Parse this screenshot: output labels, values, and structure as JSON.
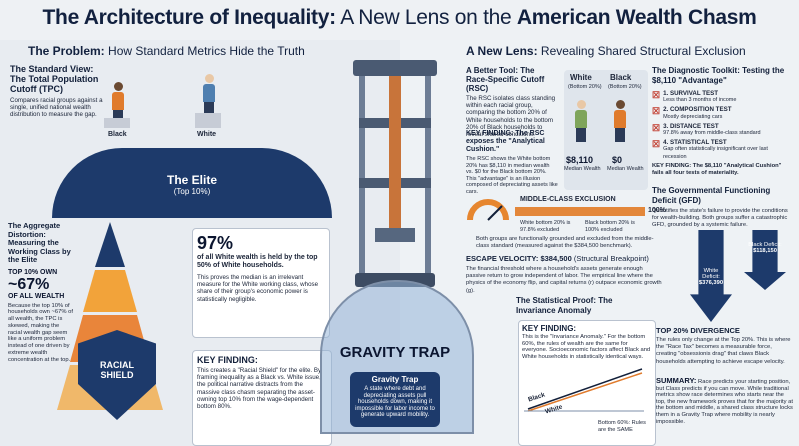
{
  "title": {
    "bold1": "The Architecture of Inequality:",
    "light": " A New Lens on the ",
    "bold2": "American Wealth Chasm"
  },
  "left": {
    "heading_bold": "The Problem:",
    "heading_rest": " How Standard Metrics Hide the Truth",
    "standard_view": {
      "title": "The Standard View: The Total Population Cutoff (TPC)",
      "desc": "Compares racial groups against a single, unified national wealth distribution to measure the gap.",
      "labels": [
        "Black",
        "White"
      ]
    },
    "elite": {
      "title": "The Elite",
      "sub": "(Top 10%)"
    },
    "aggregate": {
      "title": "The Aggregate Distortion: Measuring the Working Class by the Elite",
      "top_label": "TOP 10% OWN",
      "big": "~67%",
      "big_sub": "OF ALL WEALTH",
      "desc": "Because the top 10% of households own ~67% of all wealth, the TPC is skewed, making the racial wealth gap seem like a uniform problem instead of one driven by extreme wealth concentration at the top."
    },
    "stat97": {
      "big": "97%",
      "text": "of all White wealth is held by the top 50% of White households.",
      "desc": "This proves the median is an irrelevant measure for the White working class, whose share of their group's economic power is statistically negligible."
    },
    "shield": {
      "line1": "RACIAL",
      "line2": "SHIELD"
    },
    "key_finding": {
      "title": "KEY FINDING:",
      "text": "This creates a \"Racial Shield\" for the elite. By framing inequality as a Black vs. White issue, the political narrative distracts from the massive class chasm separating the asset-owning top 10% from the wage-dependent bottom 80%."
    }
  },
  "center": {
    "gravity_trap": "GRAVITY TRAP",
    "gt_title": "Gravity Trap",
    "gt_text": "A state where debt and depreciating assets pull households down, making it impossible for labor income to generate upward mobility."
  },
  "right": {
    "heading_bold": "A New Lens:",
    "heading_rest": " Revealing Shared Structural Exclusion",
    "rsc": {
      "title": "A Better Tool: The Race-Specific Cutoff (RSC)",
      "desc": "The RSC isolates class standing within each racial group, comparing the bottom 20% of White households to the bottom 20% of Black households to reveal shared conditions.",
      "white_label": "White",
      "white_sub": "(Bottom 20%)",
      "black_label": "Black",
      "black_sub": "(Bottom 20%)",
      "white_val": "$8,110",
      "black_val": "$0",
      "val_sub": "Median Wealth"
    },
    "key1": {
      "title": "KEY FINDING: The RSC exposes the \"Analytical Cushion.\"",
      "text": "The RSC shows the White bottom 20% has $8,110 in median wealth vs. $0 for the Black bottom 20%. This \"advantage\" is an illusion composed of depreciating assets like cars."
    },
    "mce": {
      "title": "MIDDLE-CLASS EXCLUSION",
      "pct": "100%",
      "white": "White bottom 20% is 97.8% excluded",
      "black": "Black bottom 20% is 100% excluded",
      "desc": "Both groups are functionally grounded and excluded from the middle-class standard (measured against the $384,500 benchmark)."
    },
    "escape": {
      "title": "ESCAPE VELOCITY: $384,500",
      "sub": " (Structural Breakpoint)",
      "text": "The financial threshold where a household's assets generate enough passive return to grow independent of labor. The empirical line where the physics of the economy flip, and capital returns (r) outpace economic growth (g)."
    },
    "toolkit": {
      "title": "The Diagnostic Toolkit: Testing the $8,110 \"Advantage\"",
      "tests": [
        {
          "name": "1. SURVIVAL TEST",
          "desc": "Less than 3 months of income"
        },
        {
          "name": "2. COMPOSITION TEST",
          "desc": "Mostly depreciating cars"
        },
        {
          "name": "3. DISTANCE TEST",
          "desc": "97.8% away from middle-class standard"
        },
        {
          "name": "4. STATISTICAL TEST",
          "desc": "Gap often statistically insignificant over last recession"
        }
      ],
      "finding": "KEY FINDING: The $8,110 \"Analytical Cushion\" fails all four tests of materiality."
    },
    "gfd": {
      "title": "The Governmental Functioning Deficit (GFD)",
      "text": "Quantifies the state's failure to provide the conditions for wealth-building. Both groups suffer a catastrophic GFD, grounded by a systemic failure.",
      "white": "White Deficit:",
      "white_val": "$376,390",
      "black": "Black Deficit:",
      "black_val": "$118,150"
    },
    "proof": {
      "title": "The Statistical Proof: The Invariance Anomaly",
      "key_title": "KEY FINDING:",
      "key_text": "This is the \"Invariance Anomaly.\" For the bottom 60%, the rules of wealth are the same for everyone. Socioeconomic factors affect Black and White households in statistically identical ways.",
      "line_black": "Black",
      "line_white": "White",
      "bottom": "Bottom 60%: Rules are the SAME"
    },
    "divergence": {
      "title": "TOP 20% DIVERGENCE",
      "text": "The rules only change at the Top 20%. This is where the \"Race Tax\" becomes a measurable force, creating \"obsessionis drag\" that claws Black households attempting to achieve escape velocity."
    },
    "summary": {
      "title": "SUMMARY:",
      "text": "Race predicts your starting position, but Class predicts if you can move. While traditional metrics show race determines who starts near the top, the new framework proves that for the majority at the bottom and middle, a shared class structure locks them in a Gravity Trap where mobility is nearly impossible."
    }
  }
}
